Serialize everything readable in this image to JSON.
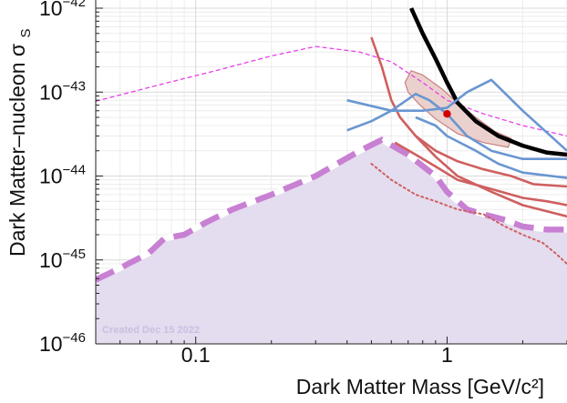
{
  "chart_data": {
    "type": "line",
    "x_scale": "log",
    "y_scale": "log",
    "xlim": [
      0.04,
      3.0
    ],
    "ylim": [
      1e-46,
      1e-42
    ],
    "xlabel": "Dark Matter Mass [GeV/c²]",
    "ylabel": "Dark Matter–nucleon σ",
    "ylabel_subscript": "S",
    "grid": true,
    "x_ticks": [
      {
        "value": 0.1,
        "label": "0.1"
      },
      {
        "value": 1,
        "label": "1"
      }
    ],
    "y_ticks": [
      {
        "value": 1e-46,
        "base": "10",
        "exp": "−46"
      },
      {
        "value": 1e-45,
        "base": "10",
        "exp": "−45"
      },
      {
        "value": 1e-44,
        "base": "10",
        "exp": "−44"
      },
      {
        "value": 1e-43,
        "base": "10",
        "exp": "−43"
      },
      {
        "value": 1e-42,
        "base": "10",
        "exp": "−42"
      }
    ],
    "watermark": "Created Dec 15 2022",
    "colors": {
      "purple_region": "#e4dcef",
      "purple_dashed": "#c880d2",
      "magenta_dashed": "#e83ee8",
      "black": "#000000",
      "red": "#cf5f5f",
      "blue": "#6a96d2",
      "ellipse_fill": "#e8c9c4",
      "ellipse_stroke": "#c98080",
      "point": "#d00000"
    },
    "series": [
      {
        "style": "shaded-dashed",
        "color_key": "purple_dashed",
        "points": [
          [
            0.04,
            5.8e-46
          ],
          [
            0.05,
            8e-46
          ],
          [
            0.065,
            1.2e-45
          ],
          [
            0.075,
            1.8e-45
          ],
          [
            0.09,
            2e-45
          ],
          [
            0.11,
            2.8e-45
          ],
          [
            0.14,
            4e-45
          ],
          [
            0.2,
            6e-45
          ],
          [
            0.3,
            1e-44
          ],
          [
            0.45,
            2e-44
          ],
          [
            0.55,
            2.7e-44
          ],
          [
            0.7,
            1.8e-44
          ],
          [
            0.9,
            1e-44
          ],
          [
            1.0,
            6.5e-45
          ],
          [
            1.2,
            4e-45
          ],
          [
            1.4,
            3.5e-45
          ],
          [
            1.7,
            3e-45
          ],
          [
            2.0,
            2.5e-45
          ],
          [
            2.5,
            2.3e-45
          ],
          [
            3.0,
            2.3e-45
          ]
        ]
      },
      {
        "style": "thin-dashed",
        "color_key": "magenta_dashed",
        "points": [
          [
            0.04,
            7.8e-44
          ],
          [
            0.07,
            1.2e-43
          ],
          [
            0.12,
            1.8e-43
          ],
          [
            0.2,
            2.7e-43
          ],
          [
            0.3,
            3.5e-43
          ],
          [
            0.45,
            3e-43
          ],
          [
            0.6,
            2.3e-43
          ],
          [
            0.8,
            1.3e-43
          ],
          [
            1.0,
            8e-44
          ],
          [
            1.4,
            5.5e-44
          ],
          [
            2.0,
            4e-44
          ],
          [
            3.0,
            3e-44
          ]
        ]
      },
      {
        "style": "solid-thick",
        "color_key": "black",
        "points": [
          [
            0.72,
            1e-42
          ],
          [
            0.8,
            5e-43
          ],
          [
            0.9,
            2.5e-43
          ],
          [
            1.0,
            1.3e-43
          ],
          [
            1.1,
            7.5e-44
          ],
          [
            1.3,
            4.5e-44
          ],
          [
            1.6,
            3e-44
          ],
          [
            2.0,
            2.3e-44
          ],
          [
            2.5,
            1.9e-44
          ],
          [
            3.0,
            1.8e-44
          ]
        ]
      },
      {
        "style": "solid",
        "color_key": "red",
        "points": [
          [
            0.5,
            4.5e-43
          ],
          [
            0.55,
            2e-43
          ],
          [
            0.6,
            8e-44
          ],
          [
            0.65,
            5e-44
          ],
          [
            0.75,
            3e-44
          ],
          [
            0.9,
            2e-44
          ],
          [
            1.1,
            1.5e-44
          ],
          [
            1.4,
            1.2e-44
          ],
          [
            1.8,
            1e-44
          ],
          [
            2.2,
            8e-45
          ],
          [
            3.0,
            7.5e-45
          ]
        ]
      },
      {
        "style": "solid",
        "color_key": "red",
        "points": [
          [
            0.62,
            2.5e-44
          ],
          [
            0.75,
            1.8e-44
          ],
          [
            0.9,
            1.3e-44
          ],
          [
            1.1,
            9e-45
          ],
          [
            1.5,
            7e-45
          ],
          [
            2.0,
            5.5e-45
          ],
          [
            2.5,
            5e-45
          ],
          [
            3.0,
            4.5e-45
          ]
        ]
      },
      {
        "style": "solid",
        "color_key": "red",
        "points": [
          [
            0.75,
            3e-44
          ],
          [
            0.9,
            1.7e-44
          ],
          [
            1.1,
            1e-44
          ],
          [
            1.5,
            6.5e-45
          ],
          [
            2.0,
            4.5e-45
          ],
          [
            3.0,
            3.3e-45
          ]
        ]
      },
      {
        "style": "dotted",
        "color_key": "red",
        "points": [
          [
            0.5,
            1.4e-44
          ],
          [
            0.6,
            9e-45
          ],
          [
            0.75,
            6e-45
          ],
          [
            0.9,
            5e-45
          ],
          [
            1.1,
            4e-45
          ],
          [
            1.4,
            3.5e-45
          ],
          [
            1.7,
            2.5e-45
          ],
          [
            2.0,
            2e-45
          ],
          [
            2.4,
            1.6e-45
          ],
          [
            2.7,
            1.2e-45
          ],
          [
            3.0,
            9e-46
          ]
        ]
      },
      {
        "style": "solid",
        "color_key": "blue",
        "points": [
          [
            0.4,
            8e-44
          ],
          [
            0.6,
            6e-44
          ],
          [
            0.8,
            6e-44
          ],
          [
            1.0,
            6.5e-44
          ],
          [
            1.2,
            1e-43
          ],
          [
            1.5,
            1.4e-43
          ],
          [
            2.0,
            6e-44
          ],
          [
            3.0,
            2e-44
          ]
        ]
      },
      {
        "style": "solid",
        "color_key": "blue",
        "points": [
          [
            0.4,
            3.5e-44
          ],
          [
            0.5,
            4.5e-44
          ],
          [
            0.6,
            6e-44
          ],
          [
            0.75,
            9.5e-44
          ],
          [
            0.85,
            8e-44
          ],
          [
            1.0,
            5.5e-44
          ],
          [
            1.2,
            3e-44
          ],
          [
            1.5,
            2e-44
          ],
          [
            2.0,
            1.6e-44
          ],
          [
            3.0,
            1.6e-44
          ]
        ]
      },
      {
        "style": "solid",
        "color_key": "blue",
        "points": [
          [
            0.75,
            5e-44
          ],
          [
            0.9,
            4e-44
          ],
          [
            1.0,
            3e-44
          ],
          [
            1.3,
            2e-44
          ],
          [
            1.6,
            1.4e-44
          ],
          [
            2.0,
            1.1e-44
          ],
          [
            3.0,
            9.5e-45
          ]
        ]
      }
    ],
    "region": {
      "color_key": "ellipse_fill",
      "points": [
        [
          0.68,
          1.3e-43
        ],
        [
          0.72,
          1.8e-43
        ],
        [
          0.8,
          1.6e-43
        ],
        [
          0.95,
          1.1e-43
        ],
        [
          1.1,
          7.5e-44
        ],
        [
          1.3,
          5e-44
        ],
        [
          1.55,
          3.4e-44
        ],
        [
          1.8,
          2.8e-44
        ],
        [
          1.75,
          2.2e-44
        ],
        [
          1.4,
          2.5e-44
        ],
        [
          1.1,
          3.2e-44
        ],
        [
          0.9,
          4.8e-44
        ],
        [
          0.78,
          7e-44
        ],
        [
          0.7,
          1e-43
        ]
      ]
    },
    "best_fit": {
      "x": 1.0,
      "y": 5.5e-44,
      "color_key": "point"
    }
  }
}
